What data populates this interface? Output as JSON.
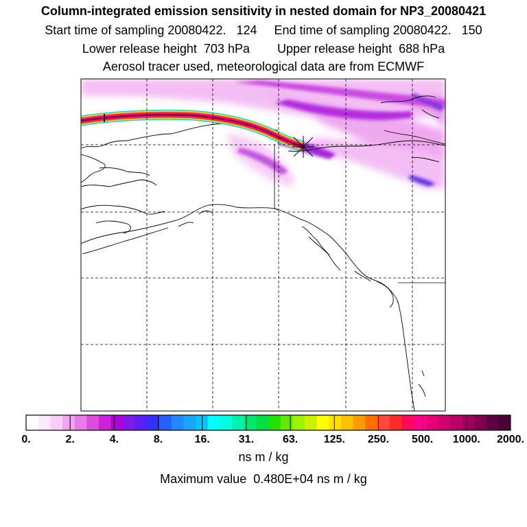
{
  "header": {
    "title": "Column-integrated emission sensitivity in nested domain for NP3_20080421",
    "line1": "Start time of sampling 20080422.   124     End time of sampling 20080422.   150",
    "line2": "Lower release height  703 hPa        Upper release height  688 hPa",
    "line3": "Aerosol tracer used, meteorological data are from ECMWF"
  },
  "colorbar": {
    "tick_labels": [
      "0.",
      "2.",
      "4.",
      "8.",
      "16.",
      "31.",
      "63.",
      "125.",
      "250.",
      "500.",
      "1000.",
      "2000."
    ],
    "colors": [
      "#ffffff",
      "#fde8fd",
      "#f9ccf9",
      "#f3a5f3",
      "#e97be9",
      "#dd4ddd",
      "#cc22dd",
      "#b000dd",
      "#7d1be8",
      "#5a1ff5",
      "#3330ff",
      "#2660ff",
      "#2188ff",
      "#17a6ff",
      "#00c8ff",
      "#00ffff",
      "#00ffe0",
      "#00f0b0",
      "#00e870",
      "#00e040",
      "#22e000",
      "#66e800",
      "#a0f000",
      "#ccf000",
      "#ffff00",
      "#ffe000",
      "#ffc000",
      "#ff9a00",
      "#ff7000",
      "#ff4a3a",
      "#ff2a2a",
      "#ff0a5a",
      "#ff0090",
      "#e8007a",
      "#d00070",
      "#b80068",
      "#9c005c",
      "#7e0050",
      "#600044",
      "#460036"
    ],
    "units": "ns m / kg",
    "max_value_text": "Maximum value  0.480E+04 ns m / kg"
  }
}
